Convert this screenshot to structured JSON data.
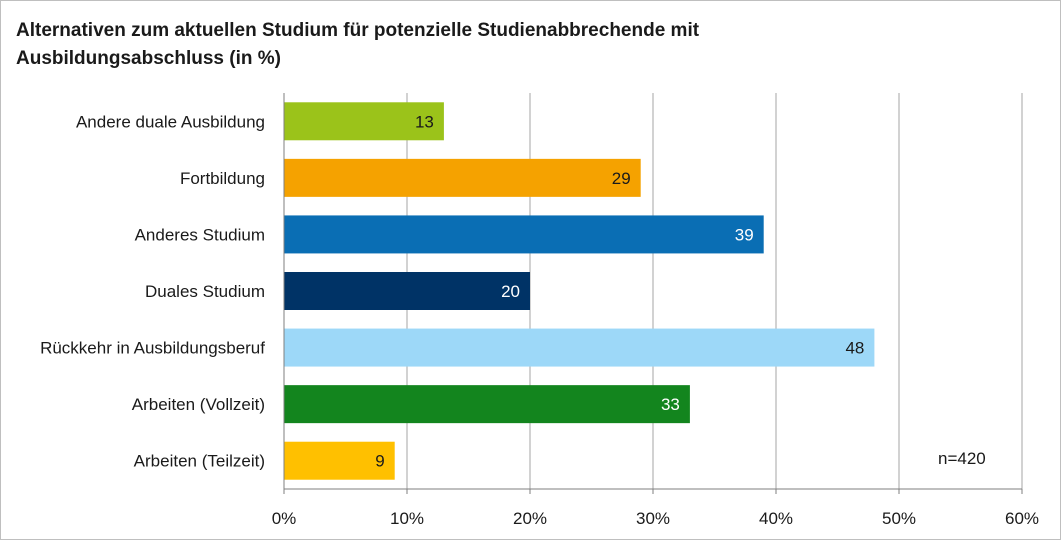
{
  "chart_data": {
    "type": "bar",
    "orientation": "horizontal",
    "title_lines": [
      "Alternativen zum aktuellen Studium für potenzielle Studienabbrechende mit",
      "Ausbildungsabschluss (in %)"
    ],
    "categories": [
      "Andere duale Ausbildung",
      "Fortbildung",
      "Anderes Studium",
      "Duales Studium",
      "Rückkehr in Ausbildungsberuf",
      "Arbeiten (Vollzeit)",
      "Arbeiten (Teilzeit)"
    ],
    "values": [
      13,
      29,
      39,
      20,
      48,
      33,
      9
    ],
    "data_labels": [
      "13",
      "29",
      "39",
      "20",
      "48",
      "33",
      "9"
    ],
    "bar_colors": [
      "#9bc31a",
      "#f5a200",
      "#0a6eb4",
      "#003366",
      "#9dd8f8",
      "#13851e",
      "#ffc000"
    ],
    "label_colors": [
      "#1a1a1a",
      "#1a1a1a",
      "#ffffff",
      "#ffffff",
      "#1a1a1a",
      "#ffffff",
      "#1a1a1a"
    ],
    "x_ticks": [
      0,
      10,
      20,
      30,
      40,
      50,
      60
    ],
    "x_tick_labels": [
      "0%",
      "10%",
      "20%",
      "30%",
      "40%",
      "50%",
      "60%"
    ],
    "xlim": [
      0,
      60
    ],
    "grid": true,
    "annotation": "n=420"
  },
  "colors": {
    "grid": "#a6a6a6",
    "axis": "#7f7f7f",
    "text": "#1a1a1a"
  }
}
